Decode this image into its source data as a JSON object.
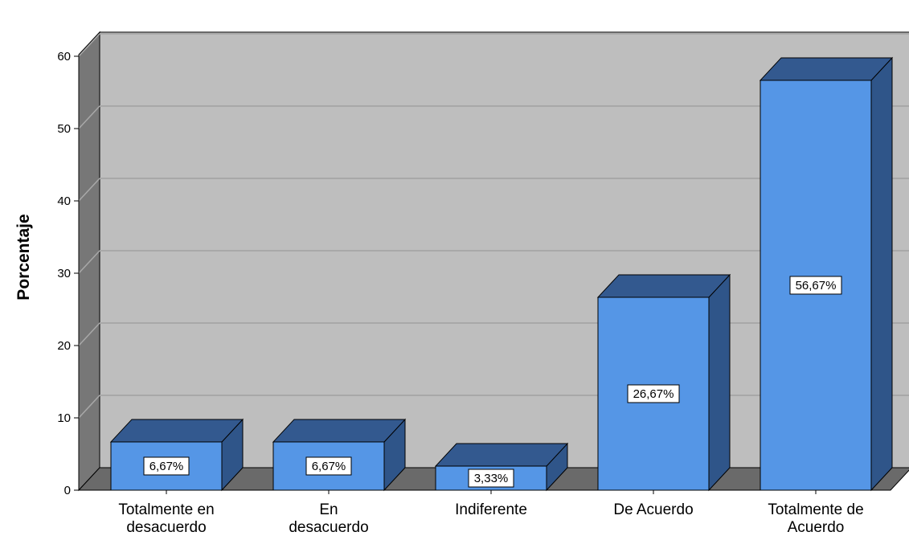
{
  "chart_data": {
    "type": "bar",
    "categories": [
      [
        "Totalmente en",
        "desacuerdo"
      ],
      [
        "En",
        "desacuerdo"
      ],
      [
        "Indiferente"
      ],
      [
        "De Acuerdo"
      ],
      [
        "Totalmente de",
        "Acuerdo"
      ]
    ],
    "values": [
      6.67,
      6.67,
      3.33,
      26.67,
      56.67
    ],
    "data_labels": [
      "6,67%",
      "6,67%",
      "3,33%",
      "26,67%",
      "56,67%"
    ],
    "title": "",
    "xlabel": "",
    "ylabel": "Porcentaje",
    "ylim": [
      0,
      60
    ],
    "yticks": [
      "0",
      "10",
      "20",
      "30",
      "40",
      "50",
      "60"
    ],
    "grid": true,
    "legend": "none",
    "colors": {
      "bar_front": "#5596e6",
      "bar_top": "#33598f",
      "bar_side": "#2f5589",
      "plot_back": "#bebebe",
      "plot_side_wall": "#777777",
      "plot_floor": "#6a6a6a",
      "grid_line": "#a8a8a8"
    }
  }
}
